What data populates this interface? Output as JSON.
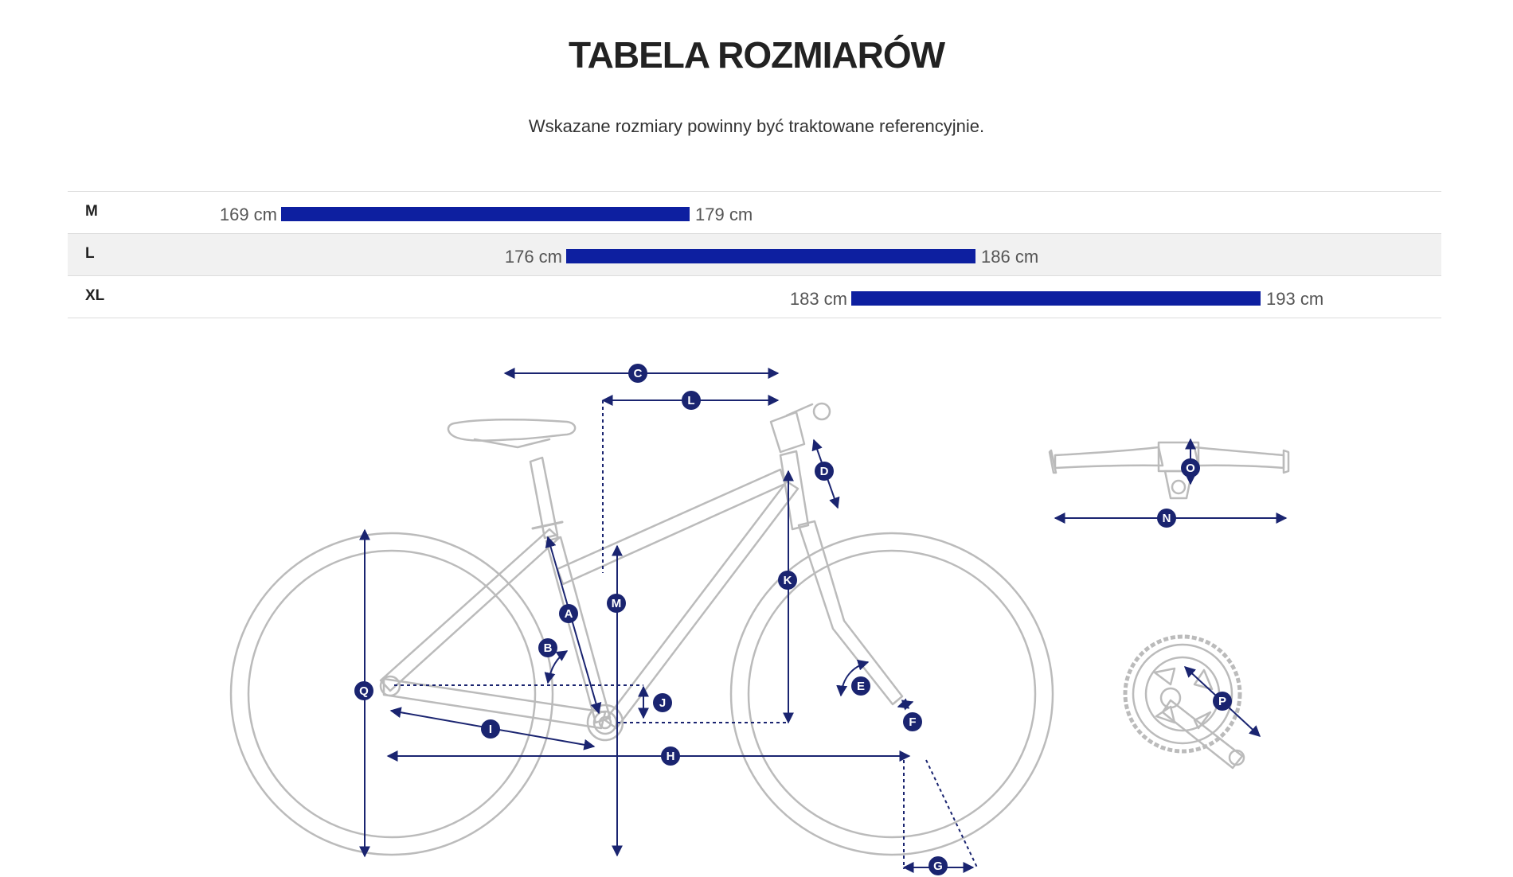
{
  "page": {
    "title": "TABELA ROZMIARÓW",
    "subtitle": "Wskazane rozmiary powinny być traktowane referencyjnie."
  },
  "sizes": [
    {
      "size": "M",
      "min": "169 cm",
      "max": "179 cm"
    },
    {
      "size": "L",
      "min": "176 cm",
      "max": "186 cm"
    },
    {
      "size": "XL",
      "min": "183 cm",
      "max": "193 cm"
    }
  ],
  "geometry_labels": [
    "A",
    "B",
    "C",
    "D",
    "E",
    "F",
    "G",
    "H",
    "I",
    "J",
    "K",
    "L",
    "M",
    "N",
    "O",
    "P",
    "Q"
  ],
  "colors": {
    "bar": "#0d1fa0",
    "dimension": "#1a2470",
    "frame": "#bbbbbb"
  }
}
